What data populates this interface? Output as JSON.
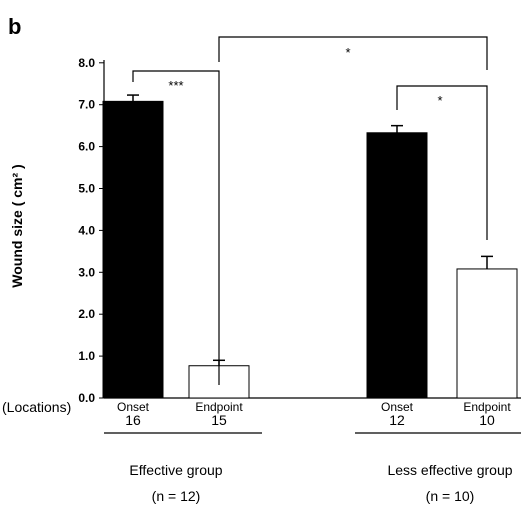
{
  "chart_data": {
    "type": "bar",
    "panel_label": "b",
    "ylabel": "Wound size ( cm² )",
    "ylim": [
      0,
      8
    ],
    "yticks": [
      "0.0",
      "1.0",
      "2.0",
      "3.0",
      "4.0",
      "5.0",
      "6.0",
      "7.0",
      "8.0"
    ],
    "grid": false,
    "locations_label": "(Locations)",
    "bars": [
      {
        "group": "Effective group",
        "label": "Onset",
        "locations": "16",
        "value": 7.08,
        "error": 0.15,
        "fill": "#000000"
      },
      {
        "group": "Effective group",
        "label": "Endpoint",
        "locations": "15",
        "value": 0.77,
        "error": 0.13,
        "fill": "#ffffff"
      },
      {
        "group": "Less effective group",
        "label": "Onset",
        "locations": "12",
        "value": 6.33,
        "error": 0.17,
        "fill": "#000000"
      },
      {
        "group": "Less effective group",
        "label": "Endpoint",
        "locations": "10",
        "value": 3.08,
        "error": 0.3,
        "fill": "#ffffff"
      }
    ],
    "groups": [
      {
        "name": "Effective group",
        "n": "(n = 12)"
      },
      {
        "name": "Less effective group",
        "n": "(n = 10)"
      }
    ],
    "significance": [
      {
        "from": 0,
        "to": 1,
        "label": "***"
      },
      {
        "from": 2,
        "to": 3,
        "label": "*"
      },
      {
        "from": 1,
        "to": 3,
        "label": "*"
      }
    ]
  }
}
